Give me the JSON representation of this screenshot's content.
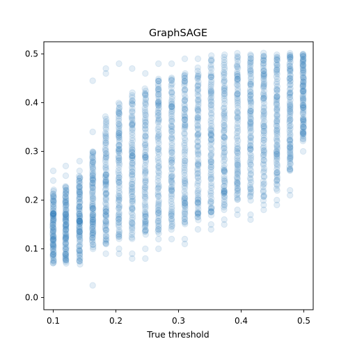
{
  "chart_data": {
    "type": "scatter",
    "title": "GraphSAGE",
    "xlabel": "True threshold",
    "ylabel": "",
    "xlim": [
      0.085,
      0.515
    ],
    "ylim": [
      -0.025,
      0.525
    ],
    "xticks": [
      "0.1",
      "0.2",
      "0.3",
      "0.4",
      "0.5"
    ],
    "xtick_values": [
      0.1,
      0.2,
      0.3,
      0.4,
      0.5
    ],
    "yticks": [
      "0.0",
      "0.1",
      "0.2",
      "0.3",
      "0.4",
      "0.5"
    ],
    "ytick_values": [
      0.0,
      0.1,
      0.2,
      0.3,
      0.4,
      0.5
    ],
    "grid": false,
    "point_color": "#1f77b4",
    "point_alpha": 0.12,
    "series": [
      {
        "columns": [
          {
            "x": 0.1,
            "core": [
              0.07,
              0.22
            ],
            "outliers": [
              0.24,
              0.26
            ]
          },
          {
            "x": 0.12,
            "core": [
              0.07,
              0.23
            ],
            "outliers": [
              0.25,
              0.27
            ]
          },
          {
            "x": 0.142,
            "core": [
              0.07,
              0.25
            ],
            "outliers": [
              0.26,
              0.28
            ]
          },
          {
            "x": 0.163,
            "core": [
              0.1,
              0.3
            ],
            "outliers": [
              0.025,
              0.34,
              0.445
            ]
          },
          {
            "x": 0.184,
            "core": [
              0.11,
              0.37
            ],
            "outliers": [
              0.09,
              0.46,
              0.47
            ]
          },
          {
            "x": 0.205,
            "core": [
              0.12,
              0.4
            ],
            "outliers": [
              0.1,
              0.09,
              0.48
            ]
          },
          {
            "x": 0.226,
            "core": [
              0.12,
              0.42
            ],
            "outliers": [
              0.08,
              0.09,
              0.47
            ]
          },
          {
            "x": 0.247,
            "core": [
              0.13,
              0.43
            ],
            "outliers": [
              0.08,
              0.1,
              0.46
            ]
          },
          {
            "x": 0.268,
            "core": [
              0.13,
              0.45
            ],
            "outliers": [
              0.1,
              0.12,
              0.48
            ]
          },
          {
            "x": 0.289,
            "core": [
              0.14,
              0.45
            ],
            "outliers": [
              0.12,
              0.48
            ]
          },
          {
            "x": 0.31,
            "core": [
              0.15,
              0.46
            ],
            "outliers": [
              0.11,
              0.12,
              0.49
            ]
          },
          {
            "x": 0.331,
            "core": [
              0.16,
              0.47
            ],
            "outliers": [
              0.14,
              0.49
            ]
          },
          {
            "x": 0.352,
            "core": [
              0.17,
              0.495
            ],
            "outliers": [
              0.14,
              0.15
            ]
          },
          {
            "x": 0.373,
            "core": [
              0.18,
              0.5
            ],
            "outliers": [
              0.15,
              0.16
            ]
          },
          {
            "x": 0.394,
            "core": [
              0.2,
              0.5
            ],
            "outliers": [
              0.17,
              0.18
            ]
          },
          {
            "x": 0.415,
            "core": [
              0.2,
              0.5
            ],
            "outliers": [
              0.16,
              0.17
            ]
          },
          {
            "x": 0.436,
            "core": [
              0.2,
              0.5
            ],
            "outliers": [
              0.18,
              0.19
            ]
          },
          {
            "x": 0.457,
            "core": [
              0.22,
              0.5
            ],
            "outliers": [
              0.19,
              0.2
            ]
          },
          {
            "x": 0.478,
            "core": [
              0.26,
              0.5
            ],
            "outliers": [
              0.21,
              0.22
            ]
          },
          {
            "x": 0.499,
            "core": [
              0.32,
              0.5
            ],
            "outliers": [
              0.3,
              0.35
            ]
          }
        ]
      }
    ]
  }
}
